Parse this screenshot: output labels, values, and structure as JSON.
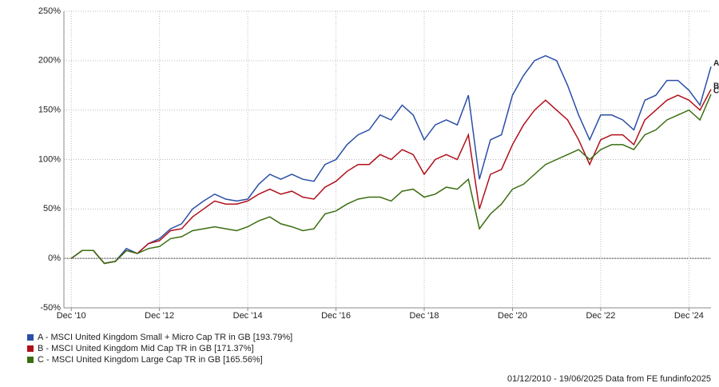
{
  "chart_data": {
    "type": "line",
    "x": [
      "2010-12",
      "2011-03",
      "2011-06",
      "2011-09",
      "2011-12",
      "2012-03",
      "2012-06",
      "2012-09",
      "2012-12",
      "2013-03",
      "2013-06",
      "2013-09",
      "2013-12",
      "2014-03",
      "2014-06",
      "2014-09",
      "2014-12",
      "2015-03",
      "2015-06",
      "2015-09",
      "2015-12",
      "2016-03",
      "2016-06",
      "2016-09",
      "2016-12",
      "2017-03",
      "2017-06",
      "2017-09",
      "2017-12",
      "2018-03",
      "2018-06",
      "2018-09",
      "2018-12",
      "2019-03",
      "2019-06",
      "2019-09",
      "2019-12",
      "2020-03",
      "2020-06",
      "2020-09",
      "2020-12",
      "2021-03",
      "2021-06",
      "2021-09",
      "2021-12",
      "2022-03",
      "2022-06",
      "2022-09",
      "2022-12",
      "2023-03",
      "2023-06",
      "2023-09",
      "2023-12",
      "2024-03",
      "2024-06",
      "2024-09",
      "2024-12",
      "2025-03",
      "2025-06"
    ],
    "series": [
      {
        "name": "A - MSCI United Kingdom Small + Micro Cap TR in GB [193.79%]",
        "label": "A",
        "color": "#2a4fa6",
        "values": [
          0,
          8,
          8,
          -5,
          -3,
          10,
          5,
          15,
          20,
          30,
          35,
          50,
          58,
          65,
          60,
          58,
          60,
          75,
          85,
          80,
          85,
          80,
          78,
          95,
          100,
          115,
          125,
          130,
          145,
          140,
          155,
          145,
          120,
          135,
          140,
          135,
          165,
          80,
          120,
          125,
          165,
          185,
          200,
          205,
          200,
          175,
          145,
          120,
          145,
          145,
          140,
          130,
          160,
          165,
          180,
          180,
          170,
          155,
          194
        ]
      },
      {
        "name": "B - MSCI United Kingdom Mid Cap TR in GB [171.37%]",
        "label": "B",
        "color": "#b0101a",
        "values": [
          0,
          8,
          8,
          -5,
          -3,
          8,
          5,
          15,
          18,
          28,
          30,
          42,
          50,
          58,
          55,
          55,
          58,
          65,
          70,
          65,
          68,
          62,
          60,
          72,
          78,
          88,
          95,
          95,
          105,
          100,
          110,
          105,
          85,
          100,
          105,
          100,
          125,
          50,
          85,
          90,
          115,
          135,
          150,
          160,
          150,
          140,
          120,
          95,
          120,
          125,
          125,
          115,
          140,
          150,
          160,
          165,
          160,
          150,
          171
        ]
      },
      {
        "name": "C - MSCI United Kingdom Large Cap TR in GB [165.56%]",
        "label": "C",
        "color": "#3a6e10",
        "values": [
          0,
          8,
          8,
          -5,
          -3,
          8,
          5,
          10,
          12,
          20,
          22,
          28,
          30,
          32,
          30,
          28,
          32,
          38,
          42,
          35,
          32,
          28,
          30,
          45,
          48,
          55,
          60,
          62,
          62,
          58,
          68,
          70,
          62,
          65,
          72,
          70,
          80,
          30,
          45,
          55,
          70,
          75,
          85,
          95,
          100,
          105,
          110,
          100,
          110,
          115,
          115,
          110,
          125,
          130,
          140,
          145,
          150,
          140,
          166
        ]
      }
    ],
    "xlim": [
      "2010-10",
      "2025-06"
    ],
    "xticks": [
      {
        "value": "2010-12",
        "label": "Dec '10"
      },
      {
        "value": "2012-12",
        "label": "Dec '12"
      },
      {
        "value": "2014-12",
        "label": "Dec '14"
      },
      {
        "value": "2016-12",
        "label": "Dec '16"
      },
      {
        "value": "2018-12",
        "label": "Dec '18"
      },
      {
        "value": "2020-12",
        "label": "Dec '20"
      },
      {
        "value": "2022-12",
        "label": "Dec '22"
      },
      {
        "value": "2024-12",
        "label": "Dec '24"
      }
    ],
    "ylim": [
      -50,
      250
    ],
    "yticks": [
      {
        "value": -50,
        "label": "-50%"
      },
      {
        "value": 0,
        "label": "0%"
      },
      {
        "value": 50,
        "label": "50%"
      },
      {
        "value": 100,
        "label": "100%"
      },
      {
        "value": 150,
        "label": "150%"
      },
      {
        "value": 200,
        "label": "200%"
      },
      {
        "value": 250,
        "label": "250%"
      }
    ],
    "grid": true,
    "footnote": "01/12/2010 - 19/06/2025 Data from FE fundinfo2025"
  }
}
